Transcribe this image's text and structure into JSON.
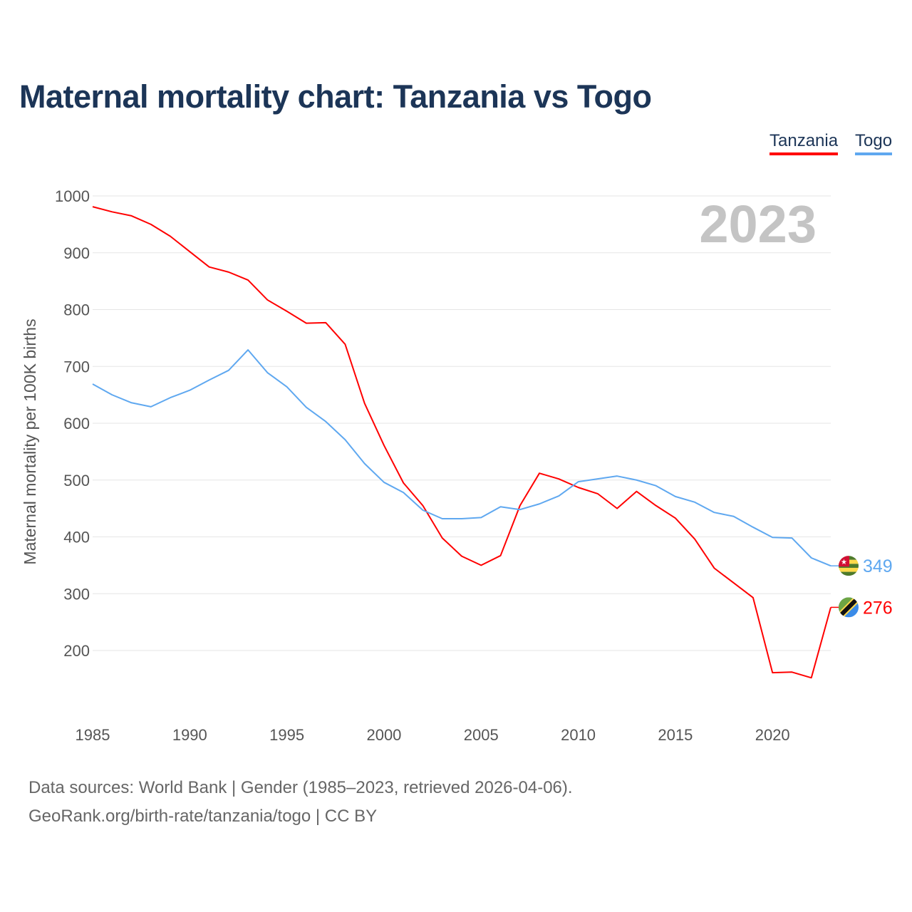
{
  "chart_data": {
    "type": "line",
    "title": "Maternal mortality chart: Tanzania vs Togo",
    "ylabel": "Maternal mortality per 100K births",
    "xlabel": "",
    "xlim": [
      1985,
      2023
    ],
    "ylim": [
      100,
      1000
    ],
    "yticks": [
      200,
      300,
      400,
      500,
      600,
      700,
      800,
      900,
      1000
    ],
    "xticks": [
      1985,
      1990,
      1995,
      2000,
      2005,
      2010,
      2015,
      2020
    ],
    "grid": true,
    "legend_placement": "top-right",
    "year_label": "2023",
    "x": [
      1985,
      1986,
      1987,
      1988,
      1989,
      1990,
      1991,
      1992,
      1993,
      1994,
      1995,
      1996,
      1997,
      1998,
      1999,
      2000,
      2001,
      2002,
      2003,
      2004,
      2005,
      2006,
      2007,
      2008,
      2009,
      2010,
      2011,
      2012,
      2013,
      2014,
      2015,
      2016,
      2017,
      2018,
      2019,
      2020,
      2021,
      2022,
      2023
    ],
    "series": [
      {
        "name": "Tanzania",
        "color": "#ff0000",
        "end_label": "276",
        "values": [
          981,
          972,
          965,
          950,
          929,
          902,
          875,
          866,
          852,
          817,
          797,
          776,
          777,
          739,
          635,
          561,
          495,
          455,
          398,
          366,
          350,
          367,
          455,
          512,
          502,
          487,
          476,
          450,
          480,
          455,
          433,
          396,
          345,
          319,
          293,
          161,
          162,
          152,
          276
        ]
      },
      {
        "name": "Togo",
        "color": "#5fa8f0",
        "end_label": "349",
        "values": [
          669,
          650,
          636,
          629,
          645,
          658,
          676,
          693,
          729,
          689,
          664,
          628,
          603,
          571,
          529,
          496,
          478,
          447,
          432,
          432,
          434,
          453,
          448,
          458,
          472,
          497,
          502,
          507,
          500,
          490,
          471,
          461,
          443,
          436,
          417,
          399,
          398,
          363,
          349
        ]
      }
    ]
  },
  "footer": {
    "line1": "Data sources: World Bank | Gender (1985–2023, retrieved 2026-04-06).",
    "line2": "GeoRank.org/birth-rate/tanzania/togo | CC BY"
  }
}
